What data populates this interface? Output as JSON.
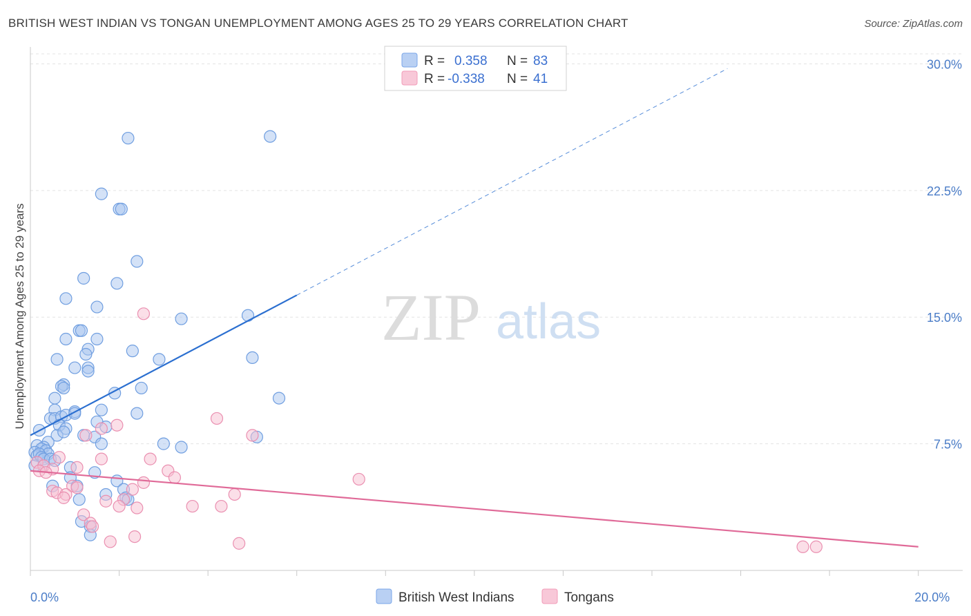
{
  "chart_data": {
    "type": "scatter",
    "title": "BRITISH WEST INDIAN VS TONGAN UNEMPLOYMENT AMONG AGES 25 TO 29 YEARS CORRELATION CHART",
    "source": "Source: ZipAtlas.com",
    "ylabel": "Unemployment Among Ages 25 to 29 years",
    "xlim": [
      0,
      21
    ],
    "ylim": [
      0,
      31
    ],
    "x_ticks": [
      {
        "value": 0,
        "label": "0.0%"
      },
      {
        "value": 20,
        "label": "20.0%"
      }
    ],
    "y_ticks": [
      {
        "value": 7.5,
        "label": "7.5%"
      },
      {
        "value": 15,
        "label": "15.0%"
      },
      {
        "value": 22.5,
        "label": "22.5%"
      },
      {
        "value": 30,
        "label": "30.0%"
      }
    ],
    "watermark": {
      "part1": "ZIP",
      "part2": "atlas"
    },
    "legend_stats": [
      {
        "r_label": "R =",
        "r_value": "0.358",
        "n_label": "N =",
        "n_value": "83",
        "color": "#7aa6e8"
      },
      {
        "r_label": "R =",
        "r_value": "-0.338",
        "n_label": "N =",
        "n_value": "41",
        "color": "#f29bb8"
      }
    ],
    "series": [
      {
        "name": "British West Indians",
        "fill": "#a9c6f0",
        "stroke": "#6f9ee0",
        "trend": {
          "x0": 0,
          "y0": 8.0,
          "x1": 6.0,
          "y1": 16.3,
          "dash_to_x": 15.7,
          "color": "#2b6fd0"
        },
        "points": [
          [
            2.2,
            25.6
          ],
          [
            5.4,
            25.7
          ],
          [
            1.6,
            22.3
          ],
          [
            2.0,
            21.4
          ],
          [
            2.05,
            21.4
          ],
          [
            2.4,
            18.3
          ],
          [
            1.2,
            17.3
          ],
          [
            1.95,
            17.0
          ],
          [
            0.8,
            16.1
          ],
          [
            1.5,
            15.6
          ],
          [
            3.4,
            14.9
          ],
          [
            4.9,
            15.1
          ],
          [
            1.1,
            14.2
          ],
          [
            1.15,
            14.2
          ],
          [
            0.8,
            13.7
          ],
          [
            1.5,
            13.7
          ],
          [
            1.3,
            13.1
          ],
          [
            1.25,
            12.8
          ],
          [
            2.3,
            13.0
          ],
          [
            2.9,
            12.5
          ],
          [
            5.0,
            12.6
          ],
          [
            0.6,
            12.5
          ],
          [
            1.3,
            12.0
          ],
          [
            1.3,
            11.8
          ],
          [
            1.0,
            12.0
          ],
          [
            0.75,
            11.0
          ],
          [
            0.7,
            10.9
          ],
          [
            0.75,
            10.8
          ],
          [
            2.5,
            10.8
          ],
          [
            1.9,
            10.5
          ],
          [
            5.6,
            10.2
          ],
          [
            0.55,
            10.2
          ],
          [
            0.55,
            9.5
          ],
          [
            1.0,
            9.4
          ],
          [
            1.6,
            9.5
          ],
          [
            2.4,
            9.3
          ],
          [
            0.45,
            9.0
          ],
          [
            0.55,
            9.0
          ],
          [
            0.7,
            9.1
          ],
          [
            0.8,
            9.2
          ],
          [
            1.0,
            9.3
          ],
          [
            0.65,
            8.6
          ],
          [
            1.5,
            8.8
          ],
          [
            1.7,
            8.5
          ],
          [
            0.2,
            8.3
          ],
          [
            0.8,
            8.4
          ],
          [
            0.6,
            8.0
          ],
          [
            0.75,
            8.2
          ],
          [
            1.2,
            8.0
          ],
          [
            1.45,
            7.9
          ],
          [
            5.1,
            7.9
          ],
          [
            1.6,
            7.5
          ],
          [
            3.0,
            7.5
          ],
          [
            3.4,
            7.3
          ],
          [
            0.4,
            7.6
          ],
          [
            0.3,
            7.3
          ],
          [
            0.15,
            7.4
          ],
          [
            0.25,
            7.2
          ],
          [
            0.35,
            7.1
          ],
          [
            0.4,
            6.9
          ],
          [
            0.1,
            7.0
          ],
          [
            0.15,
            6.8
          ],
          [
            0.2,
            6.9
          ],
          [
            0.25,
            6.7
          ],
          [
            0.3,
            6.6
          ],
          [
            0.45,
            6.6
          ],
          [
            0.55,
            6.5
          ],
          [
            0.1,
            6.2
          ],
          [
            0.9,
            6.1
          ],
          [
            1.45,
            5.8
          ],
          [
            0.9,
            5.5
          ],
          [
            1.95,
            5.3
          ],
          [
            0.5,
            5.0
          ],
          [
            1.05,
            5.0
          ],
          [
            2.1,
            4.8
          ],
          [
            1.7,
            4.5
          ],
          [
            2.15,
            4.3
          ],
          [
            2.2,
            4.2
          ],
          [
            1.1,
            4.2
          ],
          [
            1.15,
            2.9
          ],
          [
            1.35,
            2.6
          ],
          [
            1.35,
            2.1
          ],
          [
            0.3,
            6.2
          ]
        ]
      },
      {
        "name": "Tongans",
        "fill": "#f7bfd1",
        "stroke": "#ea8fb0",
        "trend": {
          "x0": 0,
          "y0": 5.9,
          "x1": 20.0,
          "y1": 1.4,
          "dash_to_x": null,
          "color": "#e06a98"
        },
        "points": [
          [
            2.55,
            15.2
          ],
          [
            4.2,
            9.0
          ],
          [
            1.95,
            8.6
          ],
          [
            1.6,
            8.4
          ],
          [
            5.0,
            8.0
          ],
          [
            1.25,
            8.0
          ],
          [
            0.65,
            6.7
          ],
          [
            1.6,
            6.6
          ],
          [
            2.7,
            6.6
          ],
          [
            0.15,
            6.4
          ],
          [
            0.3,
            6.2
          ],
          [
            0.5,
            6.0
          ],
          [
            1.05,
            6.1
          ],
          [
            0.2,
            5.9
          ],
          [
            0.35,
            5.8
          ],
          [
            3.1,
            5.9
          ],
          [
            3.25,
            5.5
          ],
          [
            7.4,
            5.4
          ],
          [
            2.55,
            5.2
          ],
          [
            0.95,
            5.0
          ],
          [
            1.05,
            4.9
          ],
          [
            2.3,
            4.8
          ],
          [
            0.5,
            4.7
          ],
          [
            0.6,
            4.6
          ],
          [
            0.8,
            4.5
          ],
          [
            4.6,
            4.5
          ],
          [
            0.75,
            4.3
          ],
          [
            1.7,
            4.1
          ],
          [
            2.1,
            4.2
          ],
          [
            2.0,
            3.8
          ],
          [
            2.4,
            3.7
          ],
          [
            3.65,
            3.8
          ],
          [
            4.3,
            3.8
          ],
          [
            1.2,
            3.3
          ],
          [
            1.35,
            2.8
          ],
          [
            2.35,
            2.0
          ],
          [
            1.8,
            1.7
          ],
          [
            4.7,
            1.6
          ],
          [
            17.4,
            1.4
          ],
          [
            17.7,
            1.4
          ],
          [
            1.4,
            2.6
          ]
        ]
      }
    ]
  }
}
